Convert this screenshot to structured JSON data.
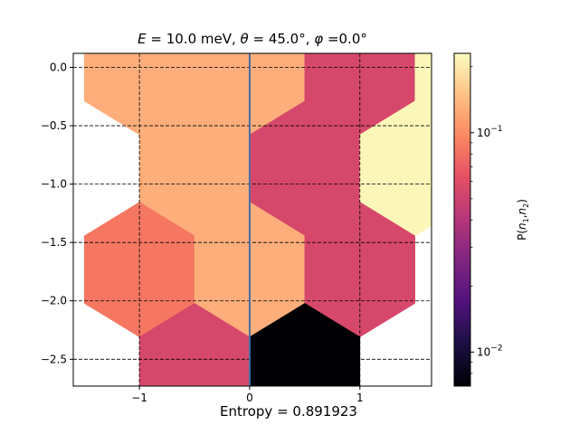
{
  "chart_data": {
    "type": "heatmap",
    "title": "E = 10.0 meV, θ = 45.0°, φ =0.0°",
    "title_parts": {
      "e_symbol": "E",
      "e_value": " = 10.0 meV, ",
      "theta_symbol": "θ",
      "theta_value": " = 45.0°, ",
      "phi_symbol": "φ",
      "phi_value": " =0.0°"
    },
    "xlim": [
      -1.6,
      1.65
    ],
    "ylim": [
      -2.73,
      0.12
    ],
    "x_ticks": [
      -1,
      0,
      1
    ],
    "y_ticks": [
      0.0,
      -0.5,
      -1.0,
      -1.5,
      -2.0,
      -2.5
    ],
    "x_tick_labels": [
      "−1",
      "0",
      "1"
    ],
    "y_tick_labels": [
      "0.0",
      "−0.5",
      "−1.0",
      "−1.5",
      "−2.0",
      "−2.5"
    ],
    "grid": "dashed",
    "vertical_line_x": 0,
    "vertical_line_color": "#4a6fa5",
    "hexagon_radius": 0.577,
    "cells": [
      {
        "x": 0.0,
        "y": 0.0,
        "p": 0.13
      },
      {
        "x": 1.0,
        "y": 0.0,
        "p": 0.055
      },
      {
        "x": 2.0,
        "y": 0.0,
        "p": 0.22
      },
      {
        "x": -1.0,
        "y": 0.0,
        "p": 0.13
      },
      {
        "x": -0.5,
        "y": -0.866,
        "p": 0.13
      },
      {
        "x": 0.5,
        "y": -0.866,
        "p": 0.055
      },
      {
        "x": 1.5,
        "y": -0.866,
        "p": 0.22
      },
      {
        "x": -1.0,
        "y": -1.732,
        "p": 0.085
      },
      {
        "x": 0.0,
        "y": -1.732,
        "p": 0.13
      },
      {
        "x": 1.0,
        "y": -1.732,
        "p": 0.055
      },
      {
        "x": -0.5,
        "y": -2.598,
        "p": 0.055
      },
      {
        "x": 0.5,
        "y": -2.598,
        "p": 0.007
      }
    ],
    "colorbar": {
      "colormap": "magma",
      "scale": "log",
      "range": [
        0.007,
        0.23
      ],
      "label_main": "P(",
      "label_n": "n",
      "label_sub1": "1",
      "label_comma": ",",
      "label_sub2": "2",
      "label_close": ")",
      "major_ticks": [
        {
          "value": 0.1,
          "base": "10",
          "exp": "−1"
        },
        {
          "value": 0.01,
          "base": "10",
          "exp": "−2"
        }
      ],
      "minor_ticks": [
        0.008,
        0.009,
        0.02,
        0.03,
        0.04,
        0.05,
        0.06,
        0.07,
        0.08,
        0.09,
        0.2
      ]
    },
    "footer": "Entropy = 0.891923"
  }
}
